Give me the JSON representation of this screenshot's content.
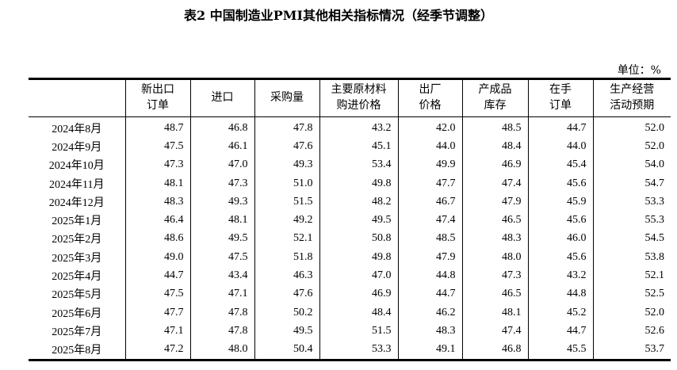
{
  "title": "表2 中国制造业PMI其他相关指标情况（经季节调整）",
  "unit": "单位：%",
  "columns": [
    "",
    "新出口\n订单",
    "进口",
    "采购量",
    "主要原材料\n购进价格",
    "出厂\n价格",
    "产成品\n库存",
    "在手\n订单",
    "生产经营\n活动预期"
  ],
  "rows": [
    [
      "2024年8月",
      "48.7",
      "46.8",
      "47.8",
      "43.2",
      "42.0",
      "48.5",
      "44.7",
      "52.0"
    ],
    [
      "2024年9月",
      "47.5",
      "46.1",
      "47.6",
      "45.1",
      "44.0",
      "48.4",
      "44.0",
      "52.0"
    ],
    [
      "2024年10月",
      "47.3",
      "47.0",
      "49.3",
      "53.4",
      "49.9",
      "46.9",
      "45.4",
      "54.0"
    ],
    [
      "2024年11月",
      "48.1",
      "47.3",
      "51.0",
      "49.8",
      "47.7",
      "47.4",
      "45.6",
      "54.7"
    ],
    [
      "2024年12月",
      "48.3",
      "49.3",
      "51.5",
      "48.2",
      "46.7",
      "47.9",
      "45.9",
      "53.3"
    ],
    [
      "2025年1月",
      "46.4",
      "48.1",
      "49.2",
      "49.5",
      "47.4",
      "46.5",
      "45.6",
      "55.3"
    ],
    [
      "2025年2月",
      "48.6",
      "49.5",
      "52.1",
      "50.8",
      "48.5",
      "48.3",
      "46.0",
      "54.5"
    ],
    [
      "2025年3月",
      "49.0",
      "47.5",
      "51.8",
      "49.8",
      "47.9",
      "48.0",
      "45.6",
      "53.8"
    ],
    [
      "2025年4月",
      "44.7",
      "43.4",
      "46.3",
      "47.0",
      "44.8",
      "47.3",
      "43.2",
      "52.1"
    ],
    [
      "2025年5月",
      "47.5",
      "47.1",
      "47.6",
      "46.9",
      "44.7",
      "46.5",
      "44.8",
      "52.5"
    ],
    [
      "2025年6月",
      "47.7",
      "47.8",
      "50.2",
      "48.4",
      "46.2",
      "48.1",
      "45.2",
      "52.0"
    ],
    [
      "2025年7月",
      "47.1",
      "47.8",
      "49.5",
      "51.5",
      "48.3",
      "47.4",
      "44.7",
      "52.6"
    ],
    [
      "2025年8月",
      "47.2",
      "48.0",
      "50.4",
      "53.3",
      "49.1",
      "46.8",
      "45.5",
      "53.7"
    ]
  ]
}
